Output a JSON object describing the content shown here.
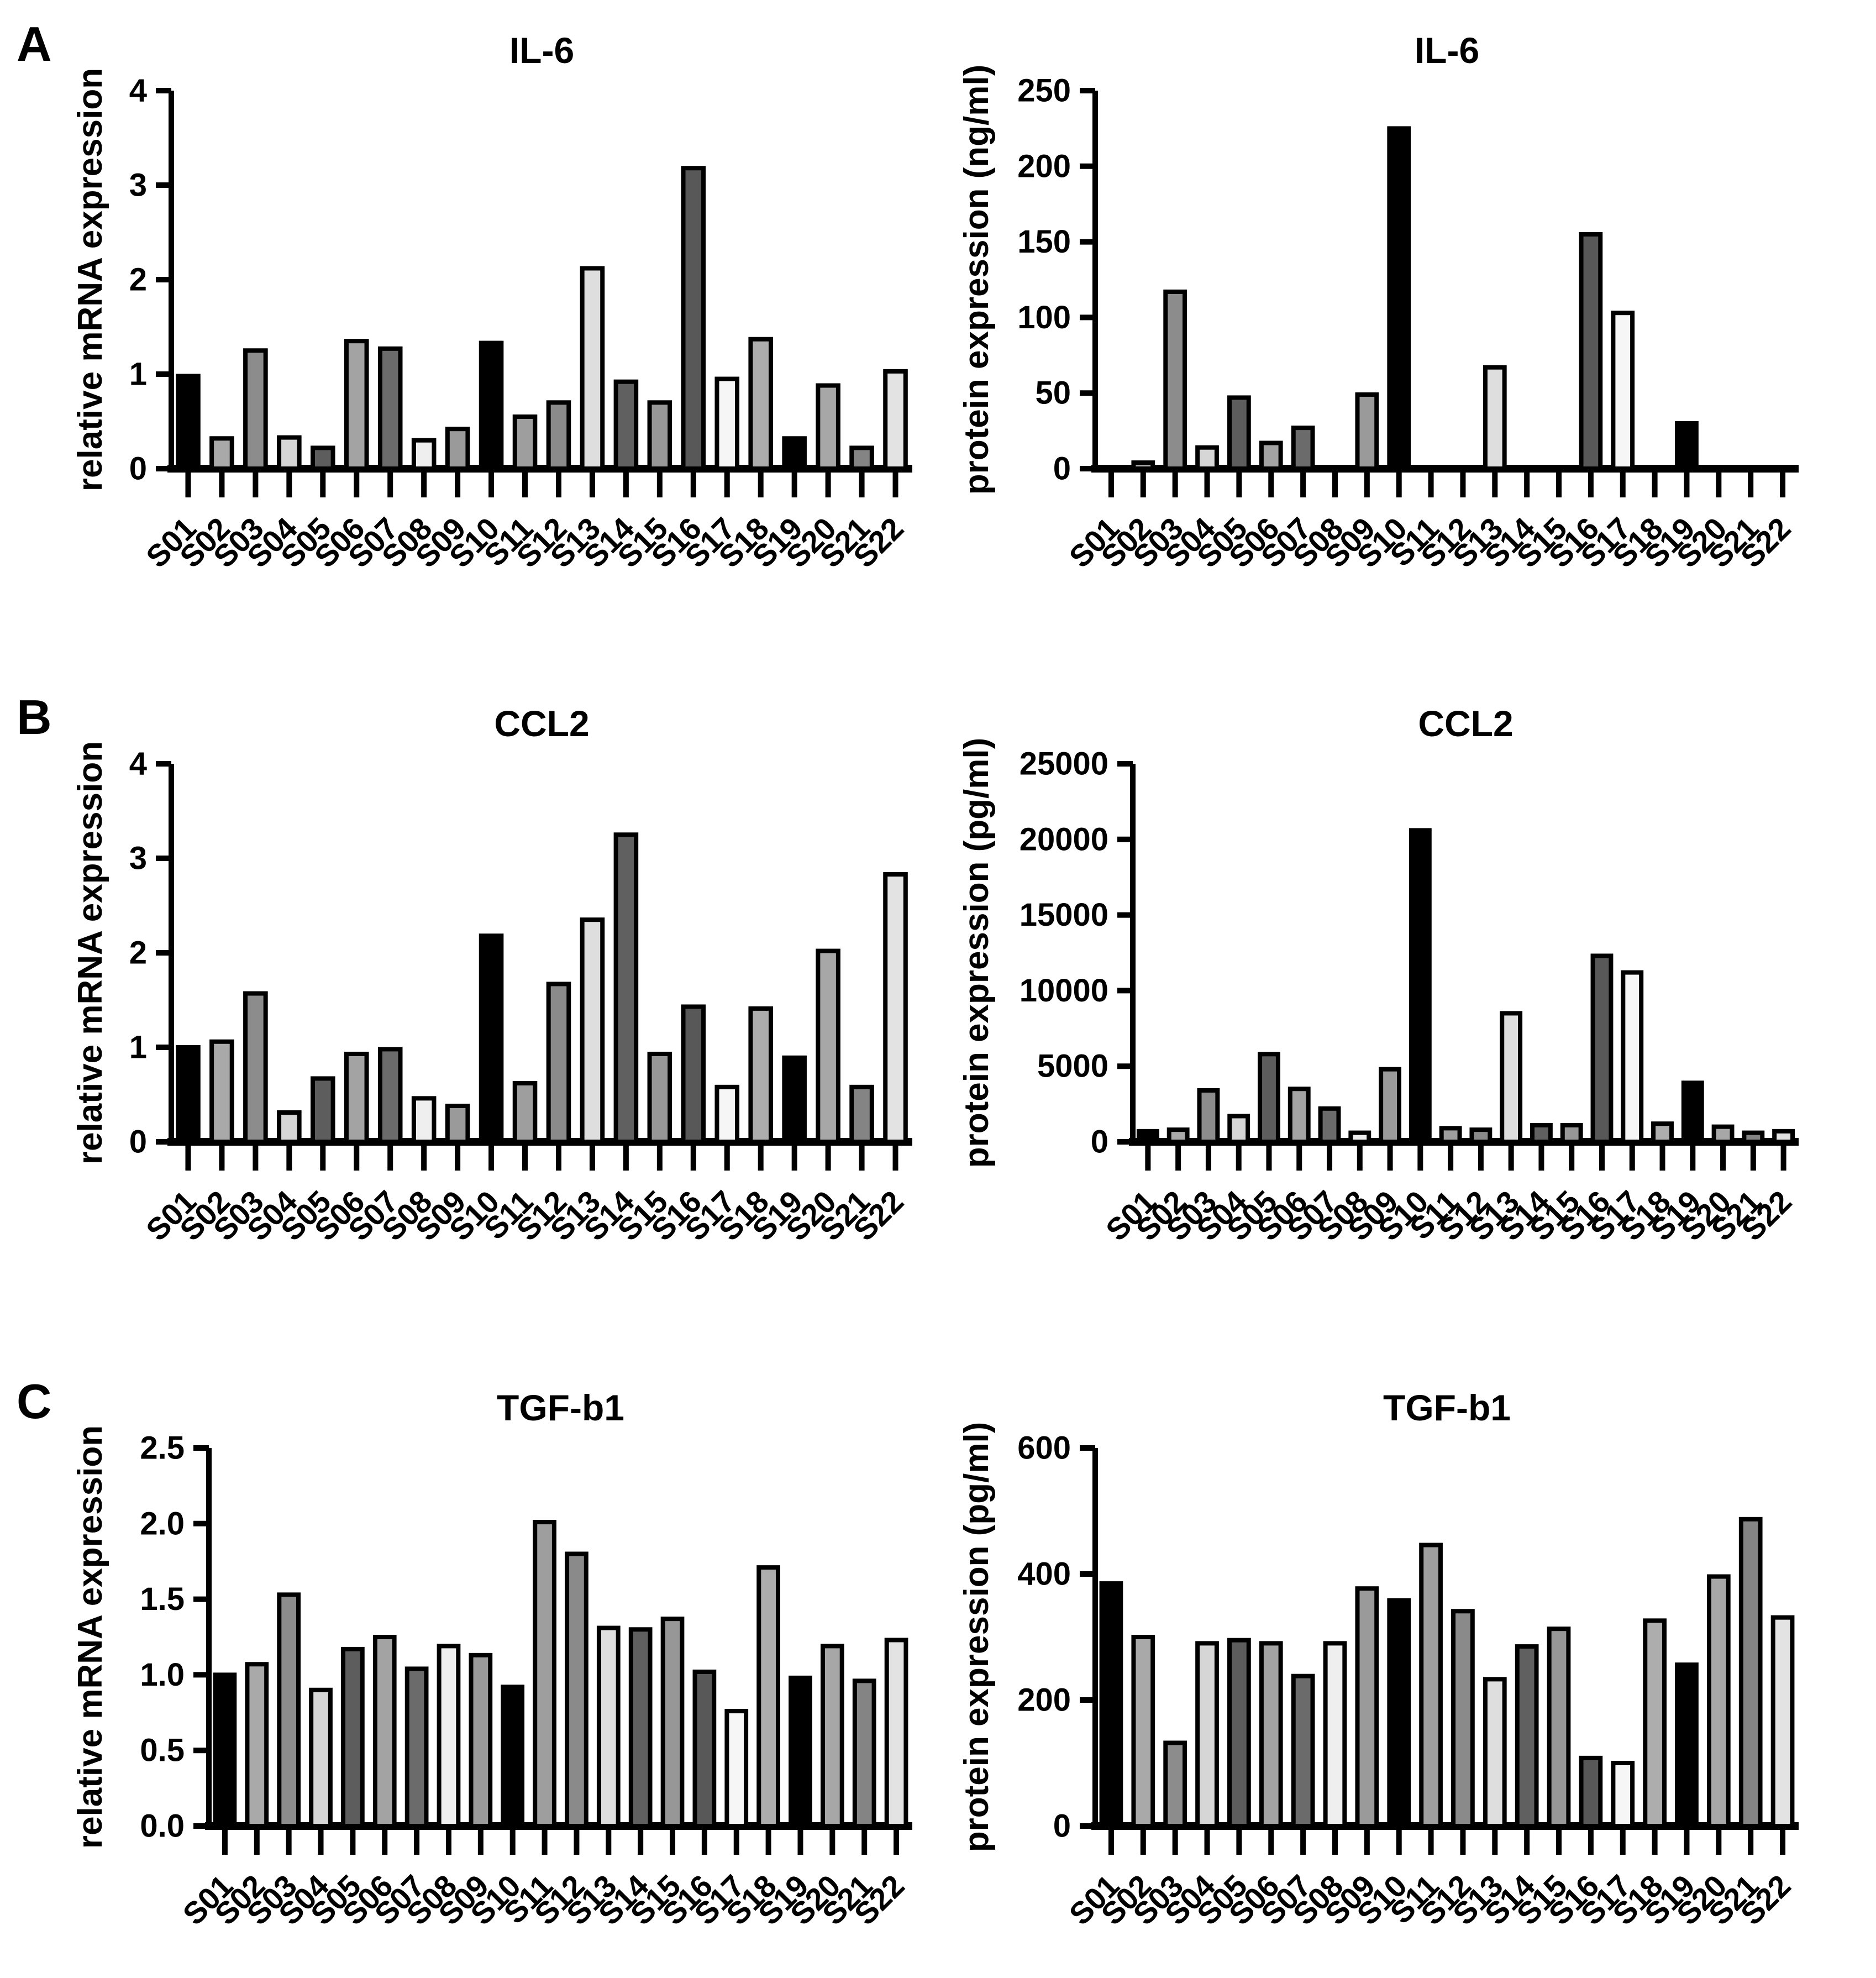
{
  "figure": {
    "panels": [
      {
        "label": "A"
      },
      {
        "label": "B"
      },
      {
        "label": "C"
      }
    ]
  },
  "samples": {
    "categories": [
      "S01",
      "S02",
      "S03",
      "S04",
      "S05",
      "S06",
      "S07",
      "S08",
      "S09",
      "S10",
      "S11",
      "S12",
      "S13",
      "S14",
      "S15",
      "S16",
      "S17",
      "S18",
      "S19",
      "S20",
      "S21",
      "S22"
    ],
    "colors": [
      "#000000",
      "#a9a9a9",
      "#8c8c8c",
      "#d6d6d6",
      "#5d5d5d",
      "#a3a3a3",
      "#6b6b6b",
      "#efefef",
      "#9a9a9a",
      "#000000",
      "#9e9e9e",
      "#8a8a8a",
      "#dedede",
      "#606060",
      "#979797",
      "#585858",
      "#f6f6f6",
      "#adadad",
      "#000000",
      "#a7a7a7",
      "#848484",
      "#e3e3e3"
    ]
  },
  "chart_data": [
    {
      "type": "bar",
      "panel": "A",
      "title": "IL-6",
      "ylabel": "relative mRNA expression",
      "xlabel": "",
      "ylim": [
        0,
        4
      ],
      "yticks": [
        0,
        1,
        2,
        3,
        4
      ],
      "ytick_labels": [
        "0",
        "1",
        "2",
        "3",
        "4"
      ],
      "grid": false,
      "legend": "none",
      "categories": [
        "S01",
        "S02",
        "S03",
        "S04",
        "S05",
        "S06",
        "S07",
        "S08",
        "S09",
        "S10",
        "S11",
        "S12",
        "S13",
        "S14",
        "S15",
        "S16",
        "S17",
        "S18",
        "S19",
        "S20",
        "S21",
        "S22"
      ],
      "values": [
        0.98,
        0.32,
        1.25,
        0.33,
        0.22,
        1.35,
        1.27,
        0.3,
        0.42,
        1.33,
        0.55,
        0.7,
        2.12,
        0.92,
        0.7,
        3.18,
        0.95,
        1.37,
        0.32,
        0.88,
        0.22,
        1.03
      ]
    },
    {
      "type": "bar",
      "panel": "A",
      "title": "IL-6",
      "ylabel": "protein expression (ng/ml)",
      "xlabel": "",
      "ylim": [
        0,
        250
      ],
      "yticks": [
        0,
        50,
        100,
        150,
        200,
        250
      ],
      "ytick_labels": [
        "0",
        "50",
        "100",
        "150",
        "200",
        "250"
      ],
      "grid": false,
      "legend": "none",
      "categories": [
        "S01",
        "S02",
        "S03",
        "S04",
        "S05",
        "S06",
        "S07",
        "S08",
        "S09",
        "S10",
        "S11",
        "S12",
        "S13",
        "S14",
        "S15",
        "S16",
        "S17",
        "S18",
        "S19",
        "S20",
        "S21",
        "S22"
      ],
      "values": [
        0,
        4,
        117,
        14,
        47,
        17,
        27,
        0,
        49,
        225,
        0,
        0,
        67,
        0,
        0,
        155,
        103,
        0,
        30,
        0,
        0,
        0
      ]
    },
    {
      "type": "bar",
      "panel": "B",
      "title": "CCL2",
      "ylabel": "relative mRNA expression",
      "xlabel": "",
      "ylim": [
        0,
        4
      ],
      "yticks": [
        0,
        1,
        2,
        3,
        4
      ],
      "ytick_labels": [
        "0",
        "1",
        "2",
        "3",
        "4"
      ],
      "grid": false,
      "legend": "none",
      "categories": [
        "S01",
        "S02",
        "S03",
        "S04",
        "S05",
        "S06",
        "S07",
        "S08",
        "S09",
        "S10",
        "S11",
        "S12",
        "S13",
        "S14",
        "S15",
        "S16",
        "S17",
        "S18",
        "S19",
        "S20",
        "S21",
        "S22"
      ],
      "values": [
        1.0,
        1.06,
        1.57,
        0.31,
        0.67,
        0.93,
        0.98,
        0.46,
        0.38,
        2.18,
        0.62,
        1.67,
        2.35,
        3.25,
        0.93,
        1.43,
        0.58,
        1.41,
        0.89,
        2.02,
        0.58,
        2.83
      ]
    },
    {
      "type": "bar",
      "panel": "B",
      "title": "CCL2",
      "ylabel": "protein expression (pg/ml)",
      "xlabel": "",
      "ylim": [
        0,
        25000
      ],
      "yticks": [
        0,
        5000,
        10000,
        15000,
        20000,
        25000
      ],
      "ytick_labels": [
        "0",
        "5000",
        "10000",
        "15000",
        "20000",
        "25000"
      ],
      "grid": false,
      "legend": "none",
      "categories": [
        "S01",
        "S02",
        "S03",
        "S04",
        "S05",
        "S06",
        "S07",
        "S08",
        "S09",
        "S10",
        "S11",
        "S12",
        "S13",
        "S14",
        "S15",
        "S16",
        "S17",
        "S18",
        "S19",
        "S20",
        "S21",
        "S22"
      ],
      "values": [
        700,
        800,
        3400,
        1700,
        5800,
        3500,
        2200,
        600,
        4800,
        20600,
        900,
        800,
        8500,
        1100,
        1100,
        12300,
        11200,
        1200,
        3900,
        1000,
        600,
        700
      ]
    },
    {
      "type": "bar",
      "panel": "C",
      "title": "TGF-b1",
      "ylabel": "relative mRNA expression",
      "xlabel": "",
      "ylim": [
        0,
        2.5
      ],
      "yticks": [
        0,
        0.5,
        1.0,
        1.5,
        2.0,
        2.5
      ],
      "ytick_labels": [
        "0.0",
        "0.5",
        "1.0",
        "1.5",
        "2.0",
        "2.5"
      ],
      "grid": false,
      "legend": "none",
      "categories": [
        "S01",
        "S02",
        "S03",
        "S04",
        "S05",
        "S06",
        "S07",
        "S08",
        "S09",
        "S10",
        "S11",
        "S12",
        "S13",
        "S14",
        "S15",
        "S16",
        "S17",
        "S18",
        "S19",
        "S20",
        "S21",
        "S22"
      ],
      "values": [
        1.0,
        1.07,
        1.53,
        0.9,
        1.17,
        1.25,
        1.04,
        1.19,
        1.13,
        0.92,
        2.01,
        1.8,
        1.31,
        1.3,
        1.37,
        1.02,
        0.76,
        1.71,
        0.98,
        1.19,
        0.96,
        1.23
      ]
    },
    {
      "type": "bar",
      "panel": "C",
      "title": "TGF-b1",
      "ylabel": "protein expression (pg/ml)",
      "xlabel": "",
      "ylim": [
        0,
        600
      ],
      "yticks": [
        0,
        200,
        400,
        600
      ],
      "ytick_labels": [
        "0",
        "200",
        "400",
        "600"
      ],
      "grid": false,
      "legend": "none",
      "categories": [
        "S01",
        "S02",
        "S03",
        "S04",
        "S05",
        "S06",
        "S07",
        "S08",
        "S09",
        "S10",
        "S11",
        "S12",
        "S13",
        "S14",
        "S15",
        "S16",
        "S17",
        "S18",
        "S19",
        "S20",
        "S21",
        "S22"
      ],
      "values": [
        385,
        300,
        132,
        290,
        295,
        290,
        238,
        290,
        377,
        358,
        446,
        341,
        233,
        285,
        313,
        108,
        100,
        326,
        256,
        396,
        487,
        331
      ]
    }
  ]
}
